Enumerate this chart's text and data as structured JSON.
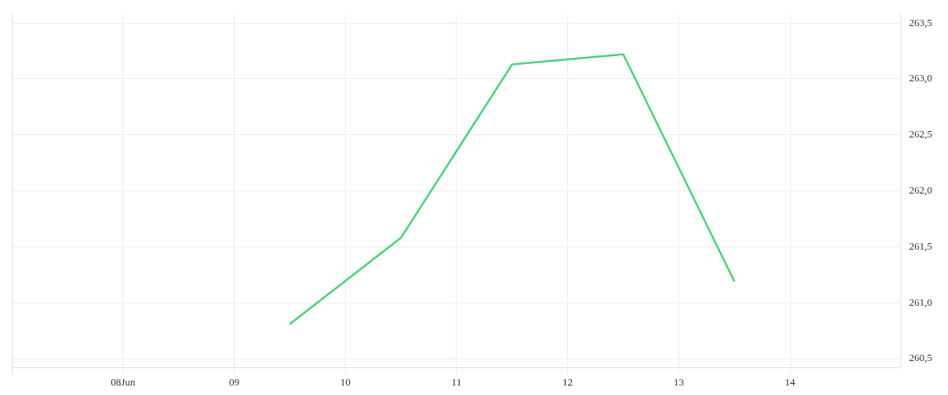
{
  "chart_data": {
    "type": "line",
    "x": [
      "--06-09T12:00",
      "--06-10T12:00",
      "--06-11T12:00",
      "--06-12T12:00",
      "--06-13T12:00"
    ],
    "series": [
      {
        "color": "#4cd17a",
        "values": [
          260.81,
          261.58,
          263.13,
          263.22,
          261.19
        ]
      }
    ],
    "xlim": [
      "--06-07",
      "--06-15"
    ],
    "xticks": [
      {
        "value": "--06-08",
        "label": "08Jun"
      },
      {
        "value": "--06-09",
        "label": "09"
      },
      {
        "value": "--06-10",
        "label": "10"
      },
      {
        "value": "--06-11",
        "label": "11"
      },
      {
        "value": "--06-12",
        "label": "12"
      },
      {
        "value": "--06-13",
        "label": "13"
      },
      {
        "value": "--06-14",
        "label": "14"
      }
    ],
    "ylim": [
      260.42,
      263.58
    ],
    "yticks": [
      {
        "value": 260.5,
        "label": "260,5"
      },
      {
        "value": 261,
        "label": "261,0"
      },
      {
        "value": 261.5,
        "label": "261,5"
      },
      {
        "value": 262,
        "label": "262,0"
      },
      {
        "value": 262.5,
        "label": "262,5"
      },
      {
        "value": 263,
        "label": "263,0"
      },
      {
        "value": 263.5,
        "label": "263,5"
      }
    ],
    "grid": true,
    "marker": "none",
    "line_style": "solid",
    "legend": false
  }
}
